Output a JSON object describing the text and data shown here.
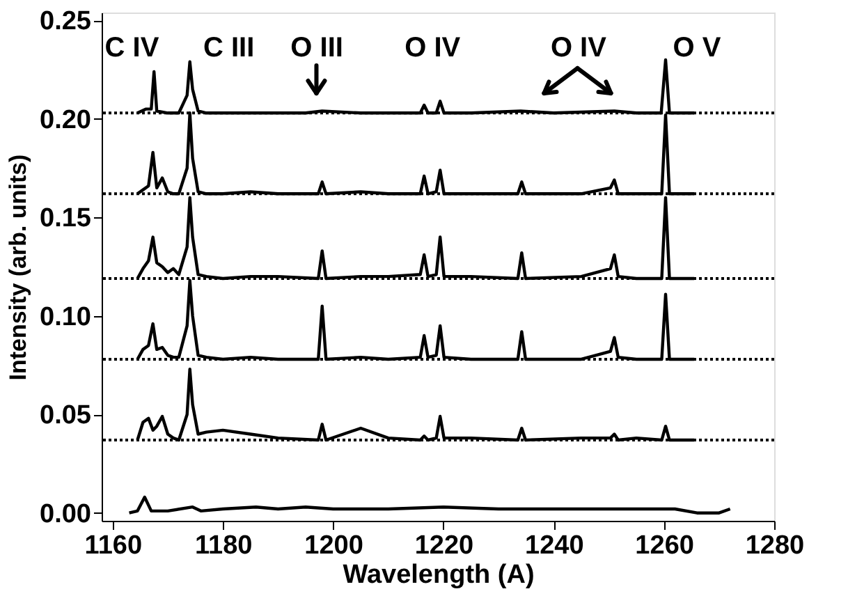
{
  "chart_data": {
    "type": "line",
    "xlabel": "Wavelength (A)",
    "ylabel": "Intensity (arb. units)",
    "xlim": [
      1158,
      1280
    ],
    "xticks": [
      1160,
      1180,
      1200,
      1220,
      1240,
      1260,
      1280
    ],
    "ylim": [
      -0.004,
      0.254
    ],
    "yticks": [
      {
        "value": 0,
        "label": "0.00"
      },
      {
        "value": 0.05,
        "label": "0.05"
      },
      {
        "value": 0.1,
        "label": "0.10"
      },
      {
        "value": 0.15,
        "label": "0.15"
      },
      {
        "value": 0.2,
        "label": "0.20"
      },
      {
        "value": 0.25,
        "label": "0.25"
      }
    ],
    "grid": false,
    "legend": false,
    "marker": "none",
    "line_style": "solid",
    "series": [
      {
        "color": "#000000",
        "x": [
          1164.5,
          1166,
          1167,
          1167.5,
          1168,
          1170,
          1172,
          1173.5,
          1174,
          1174.5,
          1175.5,
          1177,
          1185,
          1195,
          1198,
          1205,
          1212,
          1215.8,
          1216.5,
          1217.2,
          1218.7,
          1219.4,
          1220.1,
          1225,
          1234,
          1240,
          1251,
          1255,
          1259.5,
          1260.3,
          1261,
          1265.5
        ],
        "values": [
          0.203,
          0.205,
          0.205,
          0.224,
          0.204,
          0.203,
          0.203,
          0.212,
          0.229,
          0.215,
          0.204,
          0.203,
          0.203,
          0.203,
          0.204,
          0.203,
          0.203,
          0.203,
          0.207,
          0.203,
          0.203,
          0.209,
          0.203,
          0.203,
          0.204,
          0.203,
          0.204,
          0.203,
          0.203,
          0.23,
          0.203,
          0.203
        ]
      },
      {
        "color": "#000000",
        "x": [
          1164.5,
          1165.5,
          1166.5,
          1167.3,
          1168,
          1169,
          1170,
          1171,
          1172,
          1173.5,
          1174,
          1174.5,
          1175.5,
          1177,
          1180,
          1185,
          1190,
          1197.3,
          1198,
          1198.7,
          1205,
          1210,
          1215.8,
          1216.5,
          1217.2,
          1218.7,
          1219.4,
          1220.1,
          1225,
          1233.5,
          1234.2,
          1234.9,
          1245,
          1250.3,
          1251,
          1251.7,
          1255,
          1259.6,
          1260.3,
          1261,
          1265.5
        ],
        "values": [
          0.162,
          0.164,
          0.166,
          0.183,
          0.165,
          0.17,
          0.163,
          0.162,
          0.162,
          0.175,
          0.203,
          0.18,
          0.163,
          0.162,
          0.162,
          0.163,
          0.162,
          0.162,
          0.168,
          0.162,
          0.163,
          0.162,
          0.162,
          0.171,
          0.162,
          0.163,
          0.174,
          0.162,
          0.162,
          0.162,
          0.168,
          0.162,
          0.162,
          0.165,
          0.169,
          0.162,
          0.162,
          0.162,
          0.202,
          0.162,
          0.162
        ]
      },
      {
        "color": "#000000",
        "x": [
          1164.5,
          1165.5,
          1166.5,
          1167.3,
          1168,
          1169,
          1170,
          1171,
          1172,
          1173.5,
          1174,
          1174.5,
          1175.5,
          1177,
          1180,
          1185,
          1190,
          1197.3,
          1198,
          1198.7,
          1205,
          1210,
          1215.8,
          1216.5,
          1217.2,
          1218.7,
          1219.4,
          1220.1,
          1225,
          1233.5,
          1234.2,
          1234.9,
          1245,
          1250.3,
          1251,
          1251.7,
          1255,
          1259.6,
          1260.3,
          1261,
          1265.5
        ],
        "values": [
          0.119,
          0.124,
          0.128,
          0.14,
          0.127,
          0.125,
          0.122,
          0.124,
          0.121,
          0.135,
          0.16,
          0.14,
          0.121,
          0.12,
          0.119,
          0.12,
          0.12,
          0.119,
          0.133,
          0.119,
          0.12,
          0.12,
          0.121,
          0.131,
          0.12,
          0.121,
          0.14,
          0.12,
          0.12,
          0.119,
          0.132,
          0.119,
          0.12,
          0.124,
          0.131,
          0.12,
          0.119,
          0.119,
          0.16,
          0.119,
          0.119
        ]
      },
      {
        "color": "#000000",
        "x": [
          1164.5,
          1165.5,
          1166.5,
          1167.3,
          1168,
          1169,
          1170,
          1171,
          1172,
          1173.5,
          1174,
          1174.5,
          1175.5,
          1177,
          1180,
          1185,
          1190,
          1197.3,
          1198,
          1198.7,
          1205,
          1210,
          1215.8,
          1216.5,
          1217.2,
          1218.7,
          1219.4,
          1220.1,
          1225,
          1233.5,
          1234.2,
          1234.9,
          1245,
          1250.3,
          1251,
          1251.7,
          1255,
          1259.6,
          1260.3,
          1261,
          1265.5
        ],
        "values": [
          0.078,
          0.083,
          0.085,
          0.096,
          0.083,
          0.084,
          0.08,
          0.079,
          0.079,
          0.095,
          0.118,
          0.1,
          0.08,
          0.079,
          0.078,
          0.079,
          0.078,
          0.078,
          0.105,
          0.078,
          0.079,
          0.078,
          0.079,
          0.09,
          0.079,
          0.08,
          0.095,
          0.079,
          0.078,
          0.078,
          0.092,
          0.078,
          0.078,
          0.082,
          0.089,
          0.079,
          0.078,
          0.078,
          0.111,
          0.078,
          0.078
        ]
      },
      {
        "color": "#000000",
        "x": [
          1164.5,
          1165.5,
          1166.5,
          1167.3,
          1168,
          1169,
          1170,
          1171,
          1172,
          1173.5,
          1174,
          1174.5,
          1175.5,
          1177,
          1180,
          1185,
          1190,
          1197.3,
          1198,
          1198.7,
          1205,
          1210,
          1215.8,
          1216.5,
          1217.2,
          1218.7,
          1219.4,
          1220.1,
          1225,
          1233.5,
          1234.2,
          1234.9,
          1245,
          1250.3,
          1251,
          1251.7,
          1255,
          1259.6,
          1260.3,
          1261,
          1265.5
        ],
        "values": [
          0.037,
          0.046,
          0.048,
          0.042,
          0.044,
          0.049,
          0.04,
          0.038,
          0.037,
          0.05,
          0.073,
          0.055,
          0.04,
          0.041,
          0.042,
          0.04,
          0.038,
          0.037,
          0.045,
          0.037,
          0.043,
          0.038,
          0.037,
          0.039,
          0.037,
          0.038,
          0.049,
          0.038,
          0.038,
          0.037,
          0.043,
          0.037,
          0.038,
          0.038,
          0.04,
          0.037,
          0.038,
          0.037,
          0.044,
          0.037,
          0.037
        ]
      },
      {
        "color": "#000000",
        "x": [
          1163,
          1164.5,
          1165.8,
          1167,
          1170,
          1174.5,
          1176,
          1180,
          1186,
          1190,
          1195,
          1200,
          1210,
          1220,
          1230,
          1240,
          1250,
          1258,
          1262,
          1266,
          1270,
          1272
        ],
        "values": [
          0.0,
          0.001,
          0.008,
          0.001,
          0.001,
          0.003,
          0.001,
          0.002,
          0.003,
          0.002,
          0.003,
          0.002,
          0.002,
          0.003,
          0.002,
          0.002,
          0.002,
          0.002,
          0.002,
          0.0,
          0.0,
          0.002
        ]
      }
    ],
    "ref_lines": [
      {
        "axis": "y",
        "value": 0.203,
        "line_style": "dotted",
        "color": "#000000"
      },
      {
        "axis": "y",
        "value": 0.162,
        "line_style": "dotted",
        "color": "#000000"
      },
      {
        "axis": "y",
        "value": 0.119,
        "line_style": "dotted",
        "color": "#000000"
      },
      {
        "axis": "y",
        "value": 0.078,
        "line_style": "dotted",
        "color": "#000000"
      },
      {
        "axis": "y",
        "value": 0.037,
        "line_style": "dotted",
        "color": "#000000"
      }
    ],
    "annotations": [
      "C IV",
      "C III",
      "O III",
      "O IV",
      "O IV",
      "O V"
    ]
  }
}
